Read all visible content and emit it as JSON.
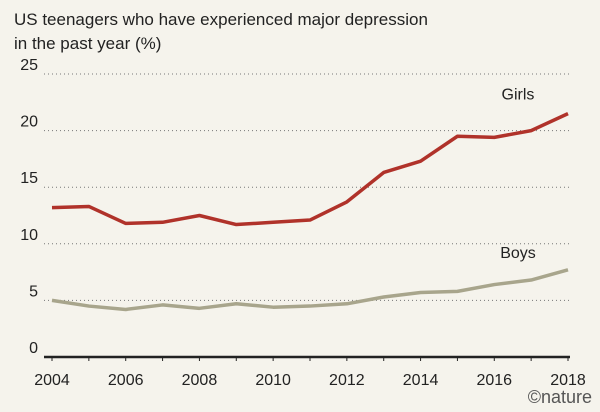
{
  "chart_data": {
    "type": "line",
    "title": "US teenagers who have experienced major depression in the past year (%)",
    "x": [
      2004,
      2005,
      2006,
      2007,
      2008,
      2009,
      2010,
      2011,
      2012,
      2013,
      2014,
      2015,
      2016,
      2017,
      2018
    ],
    "xticks": [
      "2004",
      "2006",
      "2008",
      "2010",
      "2012",
      "2014",
      "2016",
      "2018"
    ],
    "yticks": [
      "0",
      "5",
      "10",
      "15",
      "20",
      "25"
    ],
    "ylim": [
      0,
      25
    ],
    "grid": true,
    "series": [
      {
        "name": "Girls",
        "color": "#b0322a",
        "values": [
          13.2,
          13.3,
          11.8,
          11.9,
          12.5,
          11.7,
          11.9,
          12.1,
          13.7,
          16.3,
          17.3,
          19.5,
          19.4,
          20.0,
          21.5
        ]
      },
      {
        "name": "Boys",
        "color": "#a8a58c",
        "values": [
          5.0,
          4.5,
          4.2,
          4.6,
          4.3,
          4.7,
          4.4,
          4.5,
          4.7,
          5.3,
          5.7,
          5.8,
          6.4,
          6.8,
          7.7
        ]
      }
    ]
  },
  "logo": "©nature"
}
